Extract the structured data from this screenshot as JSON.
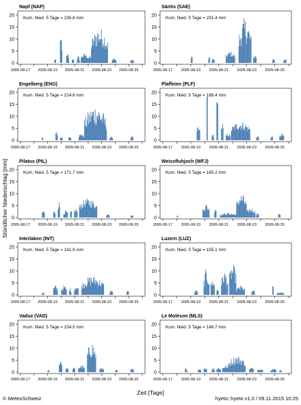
{
  "figure": {
    "ylabel": "Stündlicher Niederschlag [mm]",
    "xlabel": "Zeit [Tage]",
    "footer_left": "© MeteoSchweiz",
    "footer_right": "hyeto::hyeto v1.0 / 09.11.2015 10:25"
  },
  "colors": {
    "bar": "#4a7fb5",
    "axis": "#000000"
  },
  "chart_data": [
    {
      "type": "bar",
      "title": "Napf (NAP)",
      "annotation": "Kum. Nied. 5 Tage = 235.8 mm",
      "ylim": [
        0,
        20
      ],
      "yticks": [
        0,
        5,
        10,
        15,
        20
      ],
      "xlim": [
        0,
        216
      ],
      "xticks": [
        "2005-08-17",
        "2005-08-19",
        "2005-08-21",
        "2005-08-23",
        "2005-08-25"
      ],
      "segments": [
        [
          60,
          3,
          0.5,
          2
        ],
        [
          70,
          4,
          2,
          12
        ],
        [
          81,
          5,
          0.5,
          4
        ],
        [
          91,
          4,
          0.5,
          2
        ],
        [
          100,
          5,
          0.5,
          3
        ],
        [
          107,
          13,
          1,
          4
        ],
        [
          120,
          5,
          1,
          3
        ],
        [
          125,
          30,
          2,
          15
        ],
        [
          162,
          8,
          0.5,
          2
        ],
        [
          195,
          6,
          0.5,
          1.5
        ]
      ]
    },
    {
      "type": "bar",
      "title": "Säntis (SAE)",
      "annotation": "Kum. Nied. 5 Tage = 231.4 mm",
      "ylim": [
        0,
        20
      ],
      "yticks": [
        0,
        5,
        10,
        15,
        20
      ],
      "xlim": [
        0,
        216
      ],
      "xticks": [
        "2005-08-17",
        "2005-08-19",
        "2005-08-21",
        "2005-08-23",
        "2005-08-25"
      ],
      "segments": [
        [
          48,
          3,
          1,
          3
        ],
        [
          78,
          3,
          1,
          3
        ],
        [
          84,
          5,
          0.5,
          2
        ],
        [
          108,
          16,
          1,
          5
        ],
        [
          130,
          22,
          2,
          19
        ],
        [
          155,
          6,
          0.5,
          4
        ],
        [
          188,
          4,
          0.5,
          2
        ],
        [
          207,
          5,
          0.5,
          2
        ]
      ]
    },
    {
      "type": "bar",
      "title": "Engelberg (ENG)",
      "annotation": "Kum. Nied. 5 Tage = 214.6 mm",
      "ylim": [
        0,
        20
      ],
      "yticks": [
        0,
        5,
        10,
        15,
        20
      ],
      "xlim": [
        0,
        216
      ],
      "xticks": [
        "2005-08-17",
        "2005-08-19",
        "2005-08-21",
        "2005-08-23",
        "2005-08-25"
      ],
      "segments": [
        [
          38,
          2,
          0.5,
          1.5
        ],
        [
          62,
          4,
          0.5,
          4
        ],
        [
          70,
          5,
          0.5,
          1.5
        ],
        [
          85,
          5,
          0.5,
          2
        ],
        [
          103,
          10,
          0.5,
          3
        ],
        [
          113,
          40,
          1,
          15
        ],
        [
          158,
          6,
          0.5,
          1.5
        ],
        [
          195,
          5,
          0.5,
          2
        ]
      ]
    },
    {
      "type": "bar",
      "title": "Plaffeien (PLF)",
      "annotation": "Kum. Nied. 5 Tage = 188.4 mm",
      "ylim": [
        0,
        20
      ],
      "yticks": [
        0,
        5,
        10,
        15,
        20
      ],
      "xlim": [
        0,
        216
      ],
      "xticks": [
        "2005-08-17",
        "2005-08-19",
        "2005-08-21",
        "2005-08-23",
        "2005-08-25"
      ],
      "segments": [
        [
          58,
          6,
          1,
          6
        ],
        [
          75,
          2,
          17,
          19
        ],
        [
          84,
          4,
          0.5,
          3
        ],
        [
          92,
          3,
          15,
          16
        ],
        [
          100,
          4,
          1,
          8
        ],
        [
          108,
          8,
          0.5,
          3
        ],
        [
          117,
          33,
          2,
          8
        ],
        [
          160,
          5,
          0.5,
          2
        ],
        [
          185,
          4,
          0.5,
          2
        ],
        [
          200,
          8,
          0.5,
          3
        ]
      ]
    },
    {
      "type": "bar",
      "title": "Pilatus (PIL)",
      "annotation": "Kum. Nied. 5 Tage = 171.7 mm",
      "ylim": [
        0,
        20
      ],
      "yticks": [
        0,
        5,
        10,
        15,
        20
      ],
      "xlim": [
        0,
        216
      ],
      "xticks": [
        "2005-08-17",
        "2005-08-19",
        "2005-08-21",
        "2005-08-23",
        "2005-08-25"
      ],
      "segments": [
        [
          38,
          5,
          1,
          3
        ],
        [
          58,
          4,
          1,
          3
        ],
        [
          66,
          4,
          2,
          7
        ],
        [
          76,
          8,
          0.5,
          3
        ],
        [
          88,
          3,
          1,
          3
        ],
        [
          95,
          6,
          1,
          4
        ],
        [
          104,
          32,
          2,
          8
        ],
        [
          152,
          6,
          0.5,
          2
        ],
        [
          195,
          5,
          0.5,
          1
        ]
      ]
    },
    {
      "type": "bar",
      "title": "Weissfluhjoch (WFJ)",
      "annotation": "Kum. Nied. 5 Tage = 165.2 mm",
      "ylim": [
        0,
        20
      ],
      "yticks": [
        0,
        5,
        10,
        15,
        20
      ],
      "xlim": [
        0,
        216
      ],
      "xticks": [
        "2005-08-17",
        "2005-08-19",
        "2005-08-21",
        "2005-08-23",
        "2005-08-25"
      ],
      "segments": [
        [
          24,
          2,
          0.5,
          1
        ],
        [
          68,
          12,
          1,
          6
        ],
        [
          88,
          4,
          1,
          5
        ],
        [
          98,
          28,
          0.5,
          2
        ],
        [
          126,
          18,
          2,
          10
        ],
        [
          144,
          15,
          1,
          4
        ],
        [
          160,
          5,
          0.5,
          2
        ],
        [
          198,
          4,
          0.5,
          2
        ]
      ]
    },
    {
      "type": "bar",
      "title": "Interlaken (INT)",
      "annotation": "Kum. Nied. 5 Tage = 161.9 mm",
      "ylim": [
        0,
        20
      ],
      "yticks": [
        0,
        5,
        10,
        15,
        20
      ],
      "xlim": [
        0,
        216
      ],
      "xticks": [
        "2005-08-17",
        "2005-08-19",
        "2005-08-21",
        "2005-08-23",
        "2005-08-25"
      ],
      "segments": [
        [
          38,
          4,
          0.5,
          1
        ],
        [
          58,
          8,
          1,
          4
        ],
        [
          72,
          10,
          0.5,
          4
        ],
        [
          86,
          4,
          0.5,
          3
        ],
        [
          95,
          8,
          1,
          4
        ],
        [
          108,
          40,
          1,
          8
        ],
        [
          158,
          6,
          0.5,
          2
        ],
        [
          188,
          4,
          0.5,
          2
        ]
      ]
    },
    {
      "type": "bar",
      "title": "Luzern (LUZ)",
      "annotation": "Kum. Nied. 5 Tage = 155.1 mm",
      "ylim": [
        0,
        20
      ],
      "yticks": [
        0,
        5,
        10,
        15,
        20
      ],
      "xlim": [
        0,
        216
      ],
      "xticks": [
        "2005-08-17",
        "2005-08-19",
        "2005-08-21",
        "2005-08-23",
        "2005-08-25"
      ],
      "segments": [
        [
          54,
          6,
          0.5,
          2
        ],
        [
          70,
          10,
          0.5,
          11
        ],
        [
          82,
          7,
          1,
          7
        ],
        [
          92,
          4,
          0.5,
          3
        ],
        [
          100,
          12,
          1,
          10
        ],
        [
          114,
          12,
          2,
          13
        ],
        [
          126,
          15,
          0.5,
          4
        ],
        [
          152,
          6,
          0.5,
          2
        ],
        [
          188,
          2,
          3,
          4
        ],
        [
          196,
          12,
          0.5,
          1
        ]
      ]
    },
    {
      "type": "bar",
      "title": "Vaduz (VAD)",
      "annotation": "Kum. Nied. 5 Tage = 154.5 mm",
      "ylim": [
        0,
        20
      ],
      "yticks": [
        0,
        5,
        10,
        15,
        20
      ],
      "xlim": [
        0,
        216
      ],
      "xticks": [
        "2005-08-17",
        "2005-08-19",
        "2005-08-21",
        "2005-08-23",
        "2005-08-25"
      ],
      "segments": [
        [
          48,
          3,
          0.5,
          1
        ],
        [
          68,
          6,
          1,
          6
        ],
        [
          80,
          5,
          0.5,
          2
        ],
        [
          92,
          5,
          0.5,
          2
        ],
        [
          102,
          12,
          0.5,
          3
        ],
        [
          118,
          16,
          2,
          13
        ],
        [
          140,
          8,
          0.5,
          2
        ],
        [
          168,
          4,
          0.5,
          1
        ],
        [
          195,
          6,
          0.5,
          1.5
        ]
      ]
    },
    {
      "type": "bar",
      "title": "Le Moléson (MLS)",
      "annotation": "Kum. Nied. 5 Tage = 148.7 mm",
      "ylim": [
        0,
        20
      ],
      "yticks": [
        0,
        5,
        10,
        15,
        20
      ],
      "xlim": [
        0,
        216
      ],
      "xticks": [
        "2005-08-17",
        "2005-08-19",
        "2005-08-21",
        "2005-08-23",
        "2005-08-25"
      ],
      "segments": [
        [
          38,
          4,
          0.5,
          2
        ],
        [
          60,
          6,
          0.5,
          1.5
        ],
        [
          70,
          6,
          0.5,
          2
        ],
        [
          84,
          5,
          0.5,
          2
        ],
        [
          92,
          8,
          0.5,
          2
        ],
        [
          102,
          10,
          0.5,
          3
        ],
        [
          112,
          30,
          1,
          7
        ],
        [
          148,
          8,
          0.5,
          2
        ],
        [
          162,
          10,
          0.5,
          1.5
        ],
        [
          185,
          10,
          0.5,
          1.5
        ],
        [
          200,
          4,
          0.5,
          1
        ]
      ]
    }
  ]
}
